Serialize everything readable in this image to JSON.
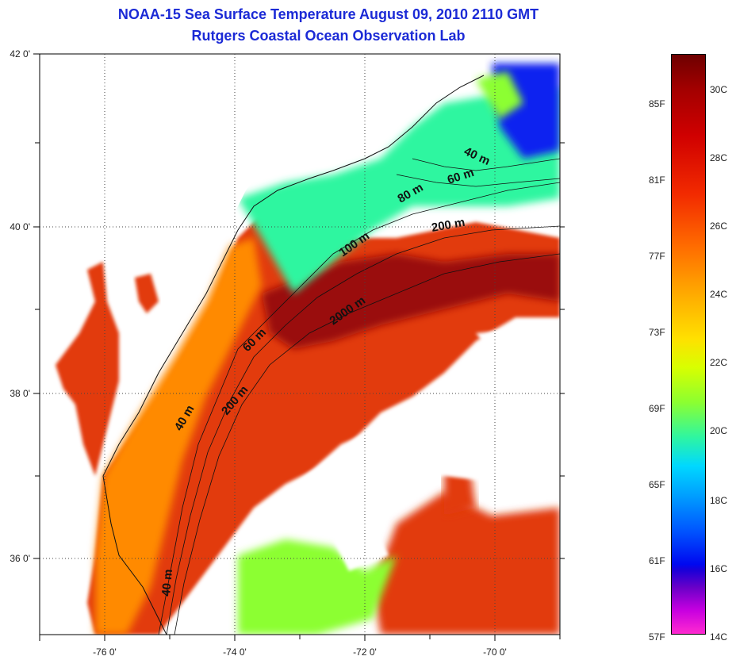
{
  "title": {
    "line1": "NOAA-15 Sea Surface Temperature August 09, 2010 2110 GMT",
    "line2": "Rutgers Coastal Ocean Observation Lab"
  },
  "map": {
    "x_ticks": [
      "-76 0'",
      "-74 0'",
      "-72 0'",
      "-70 0'"
    ],
    "y_ticks": [
      "42 0'",
      "40 0'",
      "38 0'",
      "36 0'"
    ],
    "isobath_labels": [
      "40 m",
      "60 m",
      "80 m",
      "200 m",
      "100 m",
      "2000 m",
      "60 m",
      "40 m",
      "200 m",
      "40 m"
    ],
    "colors": {
      "land": "#ffffff",
      "cloud": "#ffffff",
      "gridline": "#444444",
      "sst_warm": "#e23a08",
      "sst_hot": "#9a0b0b",
      "sst_mid": "#ff8a00",
      "sst_cool": "#2ff6a0",
      "sst_cold": "#1020f0"
    }
  },
  "colorbar": {
    "fahrenheit": [
      "85F",
      "81F",
      "77F",
      "73F",
      "69F",
      "65F",
      "61F",
      "57F"
    ],
    "celsius": [
      "30C",
      "28C",
      "26C",
      "24C",
      "22C",
      "20C",
      "18C",
      "16C",
      "14C"
    ]
  }
}
